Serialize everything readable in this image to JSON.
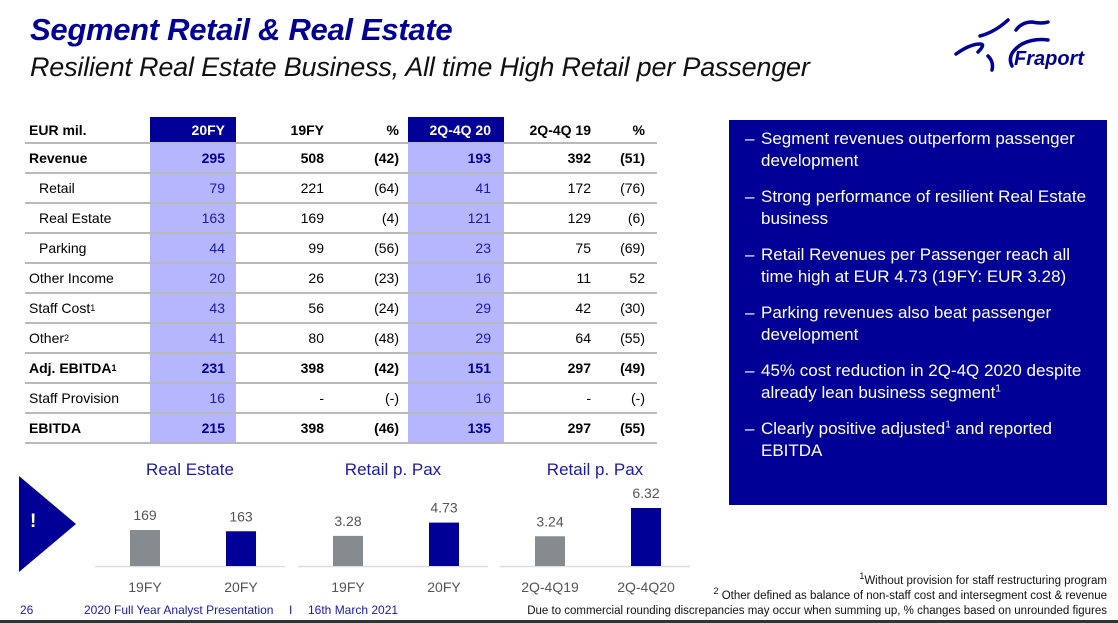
{
  "header": {
    "title": "Segment Retail & Real Estate",
    "subtitle": "Resilient Real Estate Business, All time High Retail per Passenger",
    "logo_text": "Fraport",
    "logo_icon": "fraport-star-logo"
  },
  "colors": {
    "brand_blue": "#000096",
    "highlight_column": "#b6b6ff",
    "prior_bar": "#868b90",
    "current_bar": "#000096"
  },
  "table": {
    "headers": [
      "EUR mil.",
      "20FY",
      "19FY",
      "%",
      "2Q-4Q 20",
      "2Q-4Q 19",
      "%"
    ],
    "rows": [
      {
        "label": "Revenue",
        "sup": "",
        "bold": true,
        "indent": false,
        "values": [
          "295",
          "508",
          "(42)",
          "193",
          "392",
          "(51)"
        ]
      },
      {
        "label": "Retail",
        "sup": "",
        "bold": false,
        "indent": true,
        "values": [
          "79",
          "221",
          "(64)",
          "41",
          "172",
          "(76)"
        ]
      },
      {
        "label": "Real Estate",
        "sup": "",
        "bold": false,
        "indent": true,
        "values": [
          "163",
          "169",
          "(4)",
          "121",
          "129",
          "(6)"
        ]
      },
      {
        "label": "Parking",
        "sup": "",
        "bold": false,
        "indent": true,
        "values": [
          "44",
          "99",
          "(56)",
          "23",
          "75",
          "(69)"
        ]
      },
      {
        "label": "Other Income",
        "sup": "",
        "bold": false,
        "indent": false,
        "values": [
          "20",
          "26",
          "(23)",
          "16",
          "11",
          "52"
        ]
      },
      {
        "label": "Staff Cost",
        "sup": "1",
        "bold": false,
        "indent": false,
        "values": [
          "43",
          "56",
          "(24)",
          "29",
          "42",
          "(30)"
        ]
      },
      {
        "label": "Other",
        "sup": "2",
        "bold": false,
        "indent": false,
        "values": [
          "41",
          "80",
          "(48)",
          "29",
          "64",
          "(55)"
        ]
      },
      {
        "label": "Adj. EBITDA",
        "sup": "1",
        "bold": true,
        "indent": false,
        "values": [
          "231",
          "398",
          "(42)",
          "151",
          "297",
          "(49)"
        ]
      },
      {
        "label": "Staff Provision",
        "sup": "",
        "bold": false,
        "indent": false,
        "values": [
          "16",
          "-",
          "(-)",
          "16",
          "-",
          "(-)"
        ]
      },
      {
        "label": "EBITDA",
        "sup": "",
        "bold": true,
        "indent": false,
        "values": [
          "215",
          "398",
          "(46)",
          "135",
          "297",
          "(55)"
        ]
      }
    ]
  },
  "highlights": {
    "dash": "–",
    "bullets": [
      {
        "text": "Segment revenues outperform passenger development",
        "sup": ""
      },
      {
        "text": "Strong performance of resilient Real Estate business",
        "sup": ""
      },
      {
        "text": "Retail Revenues per Passenger reach all time high at EUR 4.73 (19FY: EUR 3.28)",
        "sup": ""
      },
      {
        "text": "Parking revenues also beat passenger development",
        "sup": ""
      },
      {
        "text": "45% cost reduction in 2Q-4Q 2020 despite already lean business segment",
        "sup": "1"
      },
      {
        "text_before": "Clearly positive adjusted",
        "sup_mid": "1",
        "text": " and reported EBITDA",
        "sup": ""
      }
    ]
  },
  "callout": {
    "icon": "exclamation-icon",
    "mark": "!"
  },
  "chart_data": [
    {
      "type": "bar",
      "title": "Real Estate",
      "categories": [
        "19FY",
        "20FY"
      ],
      "values": [
        169,
        163
      ],
      "labels": [
        "169",
        "163"
      ],
      "ylim": [
        0,
        300
      ]
    },
    {
      "type": "bar",
      "title": "Retail p. Pax",
      "categories": [
        "19FY",
        "20FY"
      ],
      "values": [
        3.28,
        4.73
      ],
      "labels": [
        "3.28",
        "4.73"
      ],
      "ylim": [
        0,
        10
      ]
    },
    {
      "type": "bar",
      "title": "Retail p. Pax",
      "categories": [
        "2Q-4Q19",
        "2Q-4Q20"
      ],
      "values": [
        3.24,
        6.32
      ],
      "labels": [
        "3.24",
        "6.32"
      ],
      "ylim": [
        0,
        10
      ]
    }
  ],
  "footnotes": {
    "fn1": "Without provision for staff restructuring program",
    "fn1_mark": "1",
    "fn2": "Other defined as balance of non-staff cost and intersegment cost & revenue",
    "fn2_mark": "2",
    "fn3": "Due to commercial rounding discrepancies may occur when summing up, % changes based on unrounded figures"
  },
  "footer": {
    "page_number": "26",
    "presentation": "2020 Full Year Analyst Presentation",
    "separator": "I",
    "date": "16th March 2021"
  }
}
